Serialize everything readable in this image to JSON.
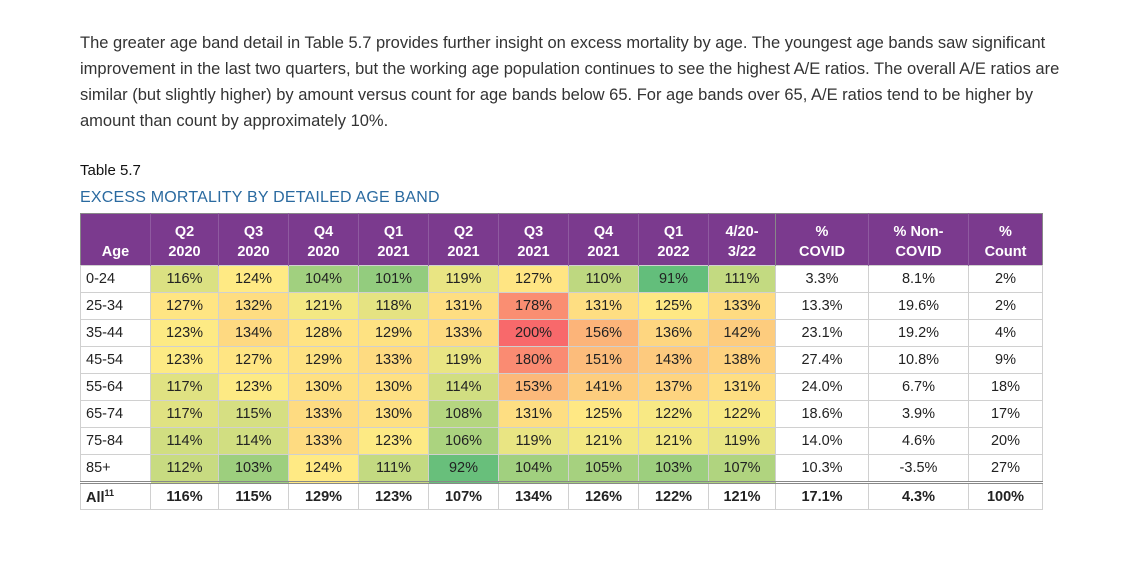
{
  "paragraph": "The greater age band detail in Table 5.7 provides further insight on excess mortality by age. The youngest age bands saw significant improvement in the last two quarters, but the working age population continues to see the highest A/E ratios. The overall A/E ratios are similar (but slightly higher) by amount versus count for age bands below 65. For age bands over 65, A/E ratios tend to be higher by amount than count by approximately 10%.",
  "table": {
    "label": "Table 5.7",
    "title": "EXCESS MORTALITY BY DETAILED AGE BAND",
    "header": [
      [
        "Age"
      ],
      [
        "Q2",
        "2020"
      ],
      [
        "Q3",
        "2020"
      ],
      [
        "Q4",
        "2020"
      ],
      [
        "Q1",
        "2021"
      ],
      [
        "Q2",
        "2021"
      ],
      [
        "Q3",
        "2021"
      ],
      [
        "Q4",
        "2021"
      ],
      [
        "Q1",
        "2022"
      ],
      [
        "4/20-",
        "3/22"
      ],
      [
        "%",
        "COVID"
      ],
      [
        "% Non-",
        "COVID"
      ],
      [
        "%",
        "Count"
      ]
    ],
    "heatmap": {
      "low": "#63be7b",
      "mid": "#ffeb84",
      "high": "#f8696b"
    },
    "rows": [
      {
        "age": "0-24",
        "ae": [
          "116%",
          "124%",
          "104%",
          "101%",
          "119%",
          "127%",
          "110%",
          "91%",
          "111%"
        ],
        "covid": "3.3%",
        "non_covid": "8.1%",
        "count": "2%"
      },
      {
        "age": "25-34",
        "ae": [
          "127%",
          "132%",
          "121%",
          "118%",
          "131%",
          "178%",
          "131%",
          "125%",
          "133%"
        ],
        "covid": "13.3%",
        "non_covid": "19.6%",
        "count": "2%"
      },
      {
        "age": "35-44",
        "ae": [
          "123%",
          "134%",
          "128%",
          "129%",
          "133%",
          "200%",
          "156%",
          "136%",
          "142%"
        ],
        "covid": "23.1%",
        "non_covid": "19.2%",
        "count": "4%"
      },
      {
        "age": "45-54",
        "ae": [
          "123%",
          "127%",
          "129%",
          "133%",
          "119%",
          "180%",
          "151%",
          "143%",
          "138%"
        ],
        "covid": "27.4%",
        "non_covid": "10.8%",
        "count": "9%"
      },
      {
        "age": "55-64",
        "ae": [
          "117%",
          "123%",
          "130%",
          "130%",
          "114%",
          "153%",
          "141%",
          "137%",
          "131%"
        ],
        "covid": "24.0%",
        "non_covid": "6.7%",
        "count": "18%"
      },
      {
        "age": "65-74",
        "ae": [
          "117%",
          "115%",
          "133%",
          "130%",
          "108%",
          "131%",
          "125%",
          "122%",
          "122%"
        ],
        "covid": "18.6%",
        "non_covid": "3.9%",
        "count": "17%"
      },
      {
        "age": "75-84",
        "ae": [
          "114%",
          "114%",
          "133%",
          "123%",
          "106%",
          "119%",
          "121%",
          "121%",
          "119%"
        ],
        "covid": "14.0%",
        "non_covid": "4.6%",
        "count": "20%"
      },
      {
        "age": "85+",
        "ae": [
          "112%",
          "103%",
          "124%",
          "111%",
          "92%",
          "104%",
          "105%",
          "103%",
          "107%"
        ],
        "covid": "10.3%",
        "non_covid": "-3.5%",
        "count": "27%"
      }
    ],
    "footer": {
      "age": "All",
      "note": "11",
      "ae": [
        "116%",
        "115%",
        "129%",
        "123%",
        "107%",
        "134%",
        "126%",
        "122%",
        "121%"
      ],
      "covid": "17.1%",
      "non_covid": "4.3%",
      "count": "100%"
    }
  }
}
